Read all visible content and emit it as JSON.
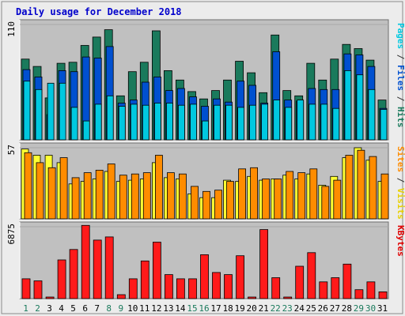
{
  "chart_data": {
    "type": "bar",
    "title": "Daily usage for December 2018",
    "categories": [
      "1",
      "2",
      "3",
      "4",
      "5",
      "6",
      "7",
      "8",
      "9",
      "10",
      "11",
      "12",
      "13",
      "14",
      "15",
      "16",
      "17",
      "18",
      "19",
      "20",
      "21",
      "22",
      "23",
      "24",
      "25",
      "26",
      "27",
      "28",
      "29",
      "30",
      "31"
    ],
    "weekend_days": [
      "1",
      "2",
      "8",
      "9",
      "15",
      "16",
      "22",
      "23",
      "29",
      "30"
    ],
    "panels": [
      {
        "key": "hits_panel",
        "ymax": 110,
        "ymax_label": "110",
        "right_label": [
          {
            "text": "Pages",
            "color": "#00c8e0"
          },
          {
            "text": " / ",
            "color": "#333333"
          },
          {
            "text": "Files",
            "color": "#0050d0"
          },
          {
            "text": " / ",
            "color": "#333333"
          },
          {
            "text": "Hits",
            "color": "#1a7a5c"
          }
        ],
        "series": [
          {
            "name": "Hits",
            "color": "#1a7a5c",
            "values": [
              77,
              70,
              40,
              73,
              74,
              90,
              98,
              105,
              42,
              65,
              74,
              104,
              66,
              57,
              46,
              39,
              47,
              57,
              75,
              64,
              45,
              100,
              47,
              42,
              73,
              57,
              77,
              91,
              87,
              76,
              38
            ]
          },
          {
            "name": "Files",
            "color": "#0050d0",
            "values": [
              67,
              60,
              24,
              66,
              65,
              79,
              78,
              89,
              35,
              38,
              55,
              60,
              47,
              49,
              41,
              32,
              39,
              36,
              56,
              52,
              35,
              84,
              38,
              37,
              49,
              48,
              48,
              82,
              81,
              70,
              30
            ]
          },
          {
            "name": "Pages",
            "color": "#00c8e0",
            "values": [
              56,
              48,
              54,
              54,
              31,
              18,
              34,
              42,
              32,
              34,
              33,
              35,
              35,
              33,
              34,
              18,
              33,
              33,
              31,
              33,
              34,
              38,
              31,
              38,
              34,
              34,
              30,
              66,
              62,
              48,
              29
            ]
          }
        ]
      },
      {
        "key": "visits_panel",
        "ymax": 57,
        "ymax_label": "57",
        "right_label": [
          {
            "text": "Sites",
            "color": "#ff8c00"
          },
          {
            "text": " / ",
            "color": "#333333"
          },
          {
            "text": "Visits",
            "color": "#e8d000"
          }
        ],
        "series": [
          {
            "name": "Visits",
            "color": "#ffff33",
            "values": [
              56,
              51,
              51,
              45,
              28,
              30,
              32,
              38,
              30,
              31,
              32,
              45,
              33,
              32,
              20,
              17,
              17,
              31,
              30,
              34,
              31,
              32,
              35,
              32,
              36,
              27,
              34,
              49,
              57,
              47,
              30
            ]
          },
          {
            "name": "Sites",
            "color": "#ff8c00",
            "values": [
              53,
              45,
              41,
              49,
              33,
              37,
              39,
              44,
              35,
              36,
              37,
              51,
              37,
              36,
              26,
              22,
              23,
              30,
              40,
              41,
              32,
              32,
              38,
              37,
              40,
              26,
              31,
              51,
              55,
              50,
              36
            ]
          }
        ]
      },
      {
        "key": "kbytes_panel",
        "ymax": 6875,
        "ymax_label": "6875",
        "right_label": [
          {
            "text": "KBytes",
            "color": "#e00000"
          }
        ],
        "series": [
          {
            "name": "KBytes",
            "color": "#ff1a1a",
            "values": [
              1900,
              1700,
              150,
              3700,
              4700,
              7000,
              5600,
              5900,
              380,
              1900,
              3600,
              5400,
              2300,
              1900,
              1900,
              4200,
              2500,
              2300,
              4100,
              150,
              6600,
              2000,
              150,
              3100,
              4400,
              1600,
              2000,
              3300,
              850,
              1600,
              650
            ]
          }
        ]
      }
    ],
    "colors": {
      "background": "#c0c0c0",
      "frame": "#ececec",
      "title": "#0000cc",
      "weekday_label": "#000000",
      "weekend_label": "#1a7a5c"
    }
  }
}
